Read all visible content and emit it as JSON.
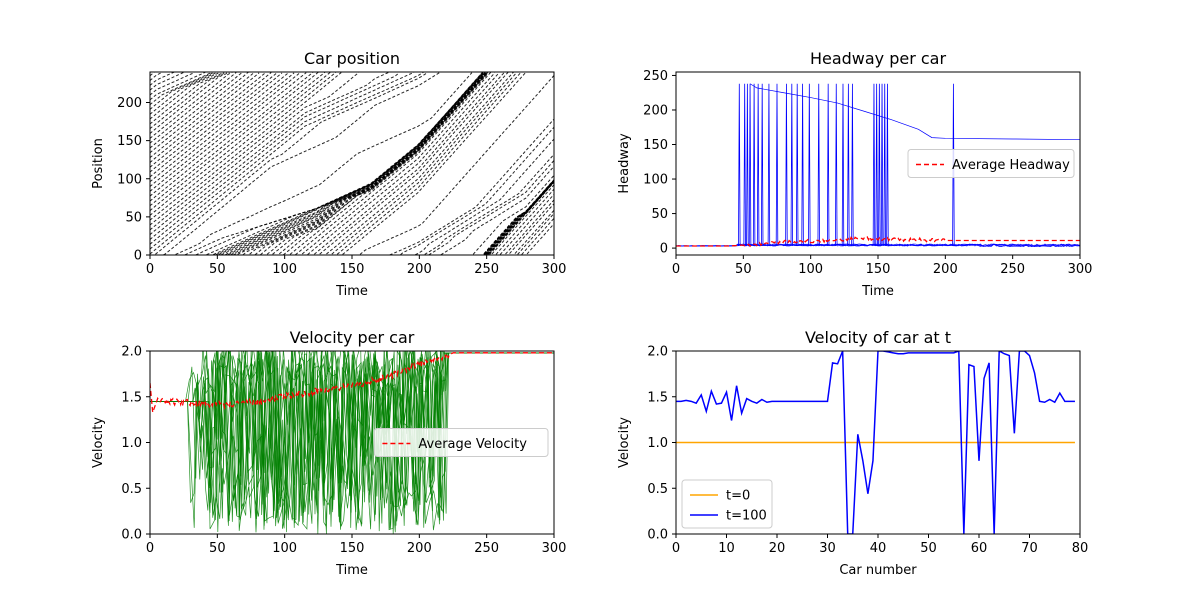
{
  "chart_data": [
    {
      "type": "line",
      "title": "Car position",
      "xlabel": "Time",
      "ylabel": "Position",
      "xlim": [
        0,
        300
      ],
      "ylim": [
        0,
        240
      ],
      "xticks": [
        0,
        50,
        100,
        150,
        200,
        250,
        300
      ],
      "yticks": [
        0,
        50,
        100,
        150,
        200
      ],
      "series_note": "",
      "line_color": "#000000",
      "trajectories": {
        "count": 38,
        "period": 240,
        "segments": [
          {
            "t": [
              0,
              20,
              45,
              60
            ],
            "v": 1.45
          },
          {
            "t": [
              60,
              200
            ],
            "v": 1.45
          },
          {
            "t": [
              200,
              300
            ],
            "v": 1.98
          }
        ],
        "stop_and_go_clusters": [
          {
            "t": 65,
            "x": 0
          },
          {
            "t": 105,
            "x": 50
          },
          {
            "t": 150,
            "x": 130
          },
          {
            "t": 175,
            "x": 200
          },
          {
            "t": 220,
            "x": 20
          }
        ]
      }
    },
    {
      "type": "line",
      "title": "Headway per car",
      "xlabel": "Time",
      "ylabel": "Headway",
      "xlim": [
        0,
        300
      ],
      "ylim": [
        -10,
        255
      ],
      "xticks": [
        0,
        50,
        100,
        150,
        200,
        250,
        300
      ],
      "yticks": [
        0,
        50,
        100,
        150,
        200,
        250
      ],
      "legend": {
        "entries": [
          "Average Headway"
        ],
        "position": "center-right"
      },
      "colors": {
        "cars": "#0000ff",
        "average": "#ff0000"
      },
      "average_headway": {
        "x": [
          0,
          40,
          60,
          80,
          100,
          120,
          140,
          160,
          180,
          200,
          220,
          300
        ],
        "y": [
          3,
          3,
          6,
          9,
          10,
          12,
          14,
          13,
          12,
          11,
          11,
          11
        ]
      },
      "envelope_line": {
        "x": [
          55,
          60,
          80,
          100,
          120,
          140,
          160,
          180,
          190,
          200,
          250,
          300
        ],
        "y": [
          238,
          232,
          225,
          218,
          210,
          198,
          186,
          172,
          160,
          159,
          158,
          157
        ]
      },
      "spike_times": [
        47,
        51,
        53,
        55,
        58,
        61,
        64,
        69,
        75,
        82,
        86,
        90,
        94,
        99,
        106,
        113,
        119,
        124,
        128,
        131,
        147,
        149,
        151,
        153,
        155,
        157,
        206
      ],
      "spike_peak": 238,
      "baseline": 3,
      "cluster_level": 5
    },
    {
      "type": "line",
      "title": "Velocity per car",
      "xlabel": "Time",
      "ylabel": "Velocity",
      "xlim": [
        0,
        300
      ],
      "ylim": [
        0,
        2
      ],
      "xticks": [
        0,
        50,
        100,
        150,
        200,
        250,
        300
      ],
      "yticks": [
        0.0,
        0.5,
        1.0,
        1.5,
        2.0
      ],
      "legend": {
        "entries": [
          "Average Velocity"
        ],
        "position": "center-right"
      },
      "colors": {
        "cars": "#008000",
        "average": "#ff0000"
      },
      "average_velocity": {
        "x": [
          0,
          2,
          5,
          20,
          40,
          60,
          80,
          100,
          120,
          140,
          160,
          180,
          200,
          220,
          225,
          300
        ],
        "y": [
          1.65,
          1.33,
          1.45,
          1.44,
          1.43,
          1.41,
          1.45,
          1.5,
          1.55,
          1.6,
          1.65,
          1.74,
          1.86,
          1.94,
          1.98,
          1.98
        ]
      },
      "oscillation_window": [
        25,
        225
      ],
      "saturation_after": 225,
      "saturation_value": 1.98,
      "initial_value": 1.45
    },
    {
      "type": "line",
      "title": "Velocity of car at t",
      "xlabel": "Car number",
      "ylabel": "Velocity",
      "xlim": [
        0,
        80
      ],
      "ylim": [
        0,
        2
      ],
      "xticks": [
        0,
        10,
        20,
        30,
        40,
        50,
        60,
        70,
        80
      ],
      "yticks": [
        0.0,
        0.5,
        1.0,
        1.5,
        2.0
      ],
      "legend": {
        "entries": [
          "t=0",
          "t=100"
        ],
        "position": "lower-left"
      },
      "series": [
        {
          "name": "t=0",
          "color": "#ffa500",
          "x": [
            0,
            79
          ],
          "y": [
            1.0,
            1.0
          ]
        },
        {
          "name": "t=100",
          "color": "#0000ff",
          "x": [
            0,
            1,
            2,
            3,
            4,
            5,
            6,
            7,
            8,
            9,
            10,
            11,
            12,
            13,
            14,
            15,
            16,
            17,
            18,
            19,
            20,
            21,
            22,
            23,
            24,
            25,
            26,
            27,
            28,
            29,
            30,
            31,
            32,
            33,
            34,
            35,
            36,
            37,
            38,
            39,
            40,
            41,
            42,
            43,
            44,
            45,
            46,
            47,
            48,
            49,
            50,
            51,
            52,
            53,
            54,
            55,
            56,
            57,
            58,
            59,
            60,
            61,
            62,
            63,
            64,
            65,
            66,
            67,
            68,
            69,
            70,
            71,
            72,
            73,
            74,
            75,
            76,
            77,
            78,
            79
          ],
          "y": [
            1.45,
            1.45,
            1.46,
            1.45,
            1.43,
            1.52,
            1.34,
            1.56,
            1.42,
            1.43,
            1.55,
            1.24,
            1.62,
            1.32,
            1.48,
            1.45,
            1.43,
            1.47,
            1.44,
            1.45,
            1.45,
            1.45,
            1.45,
            1.45,
            1.45,
            1.45,
            1.45,
            1.45,
            1.45,
            1.45,
            1.45,
            1.87,
            1.86,
            2.0,
            0.0,
            0.0,
            1.09,
            0.8,
            0.44,
            0.8,
            2.0,
            2.0,
            1.99,
            1.98,
            1.97,
            1.97,
            1.98,
            1.98,
            1.98,
            1.98,
            1.98,
            1.98,
            1.98,
            1.98,
            1.98,
            1.98,
            2.0,
            0.0,
            1.85,
            1.83,
            0.8,
            1.7,
            1.87,
            0.0,
            2.0,
            1.97,
            1.95,
            1.1,
            2.0,
            2.0,
            1.95,
            1.76,
            1.45,
            1.44,
            1.47,
            1.44,
            1.54,
            1.45,
            1.45,
            1.45
          ]
        }
      ]
    }
  ]
}
